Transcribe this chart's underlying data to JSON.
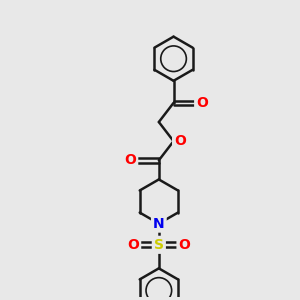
{
  "background_color": "#e8e8e8",
  "line_color": "#1a1a1a",
  "bond_width": 1.8,
  "atom_colors": {
    "O": "#ff0000",
    "N": "#0000ee",
    "S": "#cccc00",
    "C": "#1a1a1a"
  },
  "font_size_atoms": 10,
  "figsize": [
    3.0,
    3.0
  ],
  "dpi": 100
}
